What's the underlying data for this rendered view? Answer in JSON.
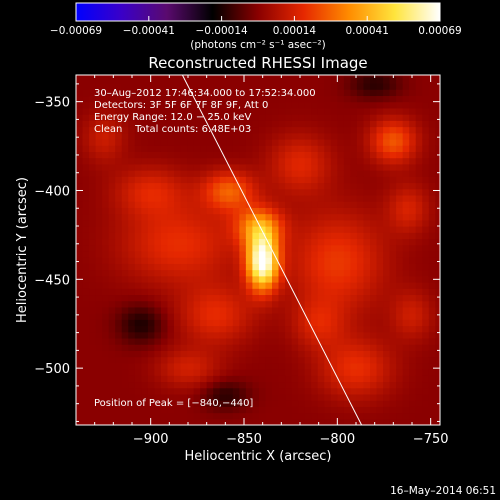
{
  "chart_data": {
    "type": "heatmap",
    "title": "Reconstructed RHESSI Image",
    "xlabel": "Heliocentric X (arcsec)",
    "ylabel": "Heliocentric Y (arcsec)",
    "xlim": [
      -940,
      -745
    ],
    "ylim": [
      -532,
      -335
    ],
    "x_ticks": [
      {
        "value": -900,
        "label": "−900"
      },
      {
        "value": -850,
        "label": "−850"
      },
      {
        "value": -800,
        "label": "−800"
      },
      {
        "value": -750,
        "label": "−750"
      }
    ],
    "y_ticks": [
      {
        "value": -350,
        "label": "−350"
      },
      {
        "value": -400,
        "label": "−400"
      },
      {
        "value": -450,
        "label": "−450"
      },
      {
        "value": -500,
        "label": "−500"
      }
    ],
    "colorbar": {
      "min": -0.00069,
      "max": 0.00069,
      "tick_labels": [
        "−0.00069",
        "−0.00041",
        "−0.00014",
        "0.00014",
        "0.00041",
        "0.00069"
      ],
      "unit_label": "(photons cm⁻² s⁻¹ asec⁻²)",
      "colormap": [
        "#0000ff",
        "#3a00c8",
        "#5a0a6e",
        "#000000",
        "#8a0000",
        "#e62800",
        "#ff8c00",
        "#ffe43c",
        "#ffffff"
      ]
    },
    "annotations": {
      "time_range": "30–Aug–2012 17:46:34.000 to 17:52:34.000",
      "detectors": "Detectors: 3F 5F 6F 7F 8F 9F, Att 0",
      "energy_range": "Energy Range: 12.0 − 25.0 keV",
      "clean_counts": "Clean    Total counts: 6.48E+03",
      "peak_position": "Position of Peak = [−840,−440]"
    },
    "peak": {
      "x": -840,
      "y": -440
    },
    "limb_line": [
      {
        "x": -883,
        "y": -335
      },
      {
        "x": -787,
        "y": -532
      }
    ],
    "emission_sources": [
      {
        "x": -840,
        "y": -440,
        "intensity": 0.00069,
        "sx": 6,
        "sy": 11
      },
      {
        "x": -842,
        "y": -420,
        "intensity": 0.00032,
        "sx": 9,
        "sy": 8
      },
      {
        "x": -858,
        "y": -400,
        "intensity": 0.00026,
        "sx": 10,
        "sy": 8
      },
      {
        "x": -885,
        "y": -430,
        "intensity": 0.00018,
        "sx": 22,
        "sy": 16
      },
      {
        "x": -900,
        "y": -400,
        "intensity": 0.00015,
        "sx": 14,
        "sy": 10
      },
      {
        "x": -800,
        "y": -440,
        "intensity": 0.0002,
        "sx": 18,
        "sy": 20
      },
      {
        "x": -820,
        "y": -385,
        "intensity": 0.00016,
        "sx": 12,
        "sy": 12
      },
      {
        "x": -770,
        "y": -372,
        "intensity": 0.00025,
        "sx": 9,
        "sy": 9
      },
      {
        "x": -762,
        "y": -410,
        "intensity": 0.00014,
        "sx": 8,
        "sy": 10
      },
      {
        "x": -865,
        "y": -470,
        "intensity": 0.00017,
        "sx": 14,
        "sy": 12
      },
      {
        "x": -790,
        "y": -500,
        "intensity": 0.00018,
        "sx": 14,
        "sy": 12
      },
      {
        "x": -880,
        "y": -500,
        "intensity": 0.00013,
        "sx": 12,
        "sy": 8
      },
      {
        "x": -810,
        "y": -475,
        "intensity": 0.00013,
        "sx": 10,
        "sy": 10
      },
      {
        "x": -925,
        "y": -370,
        "intensity": 0.00012,
        "sx": 8,
        "sy": 10
      },
      {
        "x": -760,
        "y": -470,
        "intensity": 0.00012,
        "sx": 8,
        "sy": 10
      },
      {
        "x": -905,
        "y": -475,
        "intensity": -0.00014,
        "sx": 9,
        "sy": 8
      },
      {
        "x": -860,
        "y": -515,
        "intensity": -0.00012,
        "sx": 9,
        "sy": 6
      },
      {
        "x": -780,
        "y": -340,
        "intensity": -0.00012,
        "sx": 10,
        "sy": 6
      }
    ]
  },
  "footer": {
    "timestamp": "16–May–2014 06:51"
  }
}
